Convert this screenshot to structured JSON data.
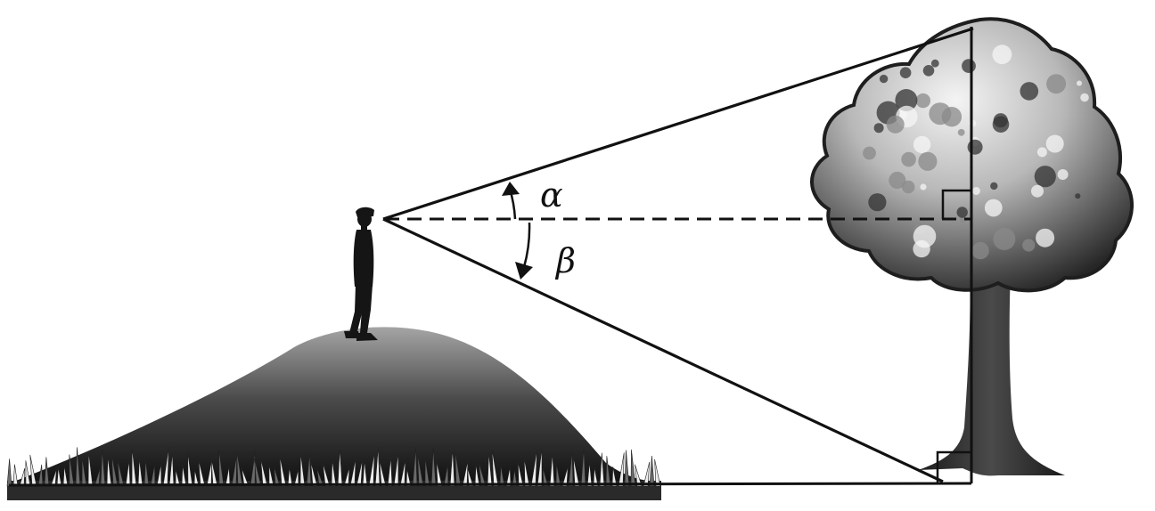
{
  "labels": {
    "alpha": "α",
    "beta": "β"
  },
  "colors": {
    "line": "#111111",
    "background": "#ffffff",
    "foliage_light": "#f2f2f2",
    "foliage_mid": "#9a9a9a",
    "foliage_dark": "#3a3a3a",
    "trunk": "#2a2a2a",
    "hill_top": "#9c9c9c",
    "hill_bottom": "#151515",
    "grass": "#e8e8e8"
  },
  "icons": {
    "observer": "person-silhouette-icon",
    "tree": "tree-icon",
    "hill": "hill-icon",
    "grass": "grass-icon"
  }
}
